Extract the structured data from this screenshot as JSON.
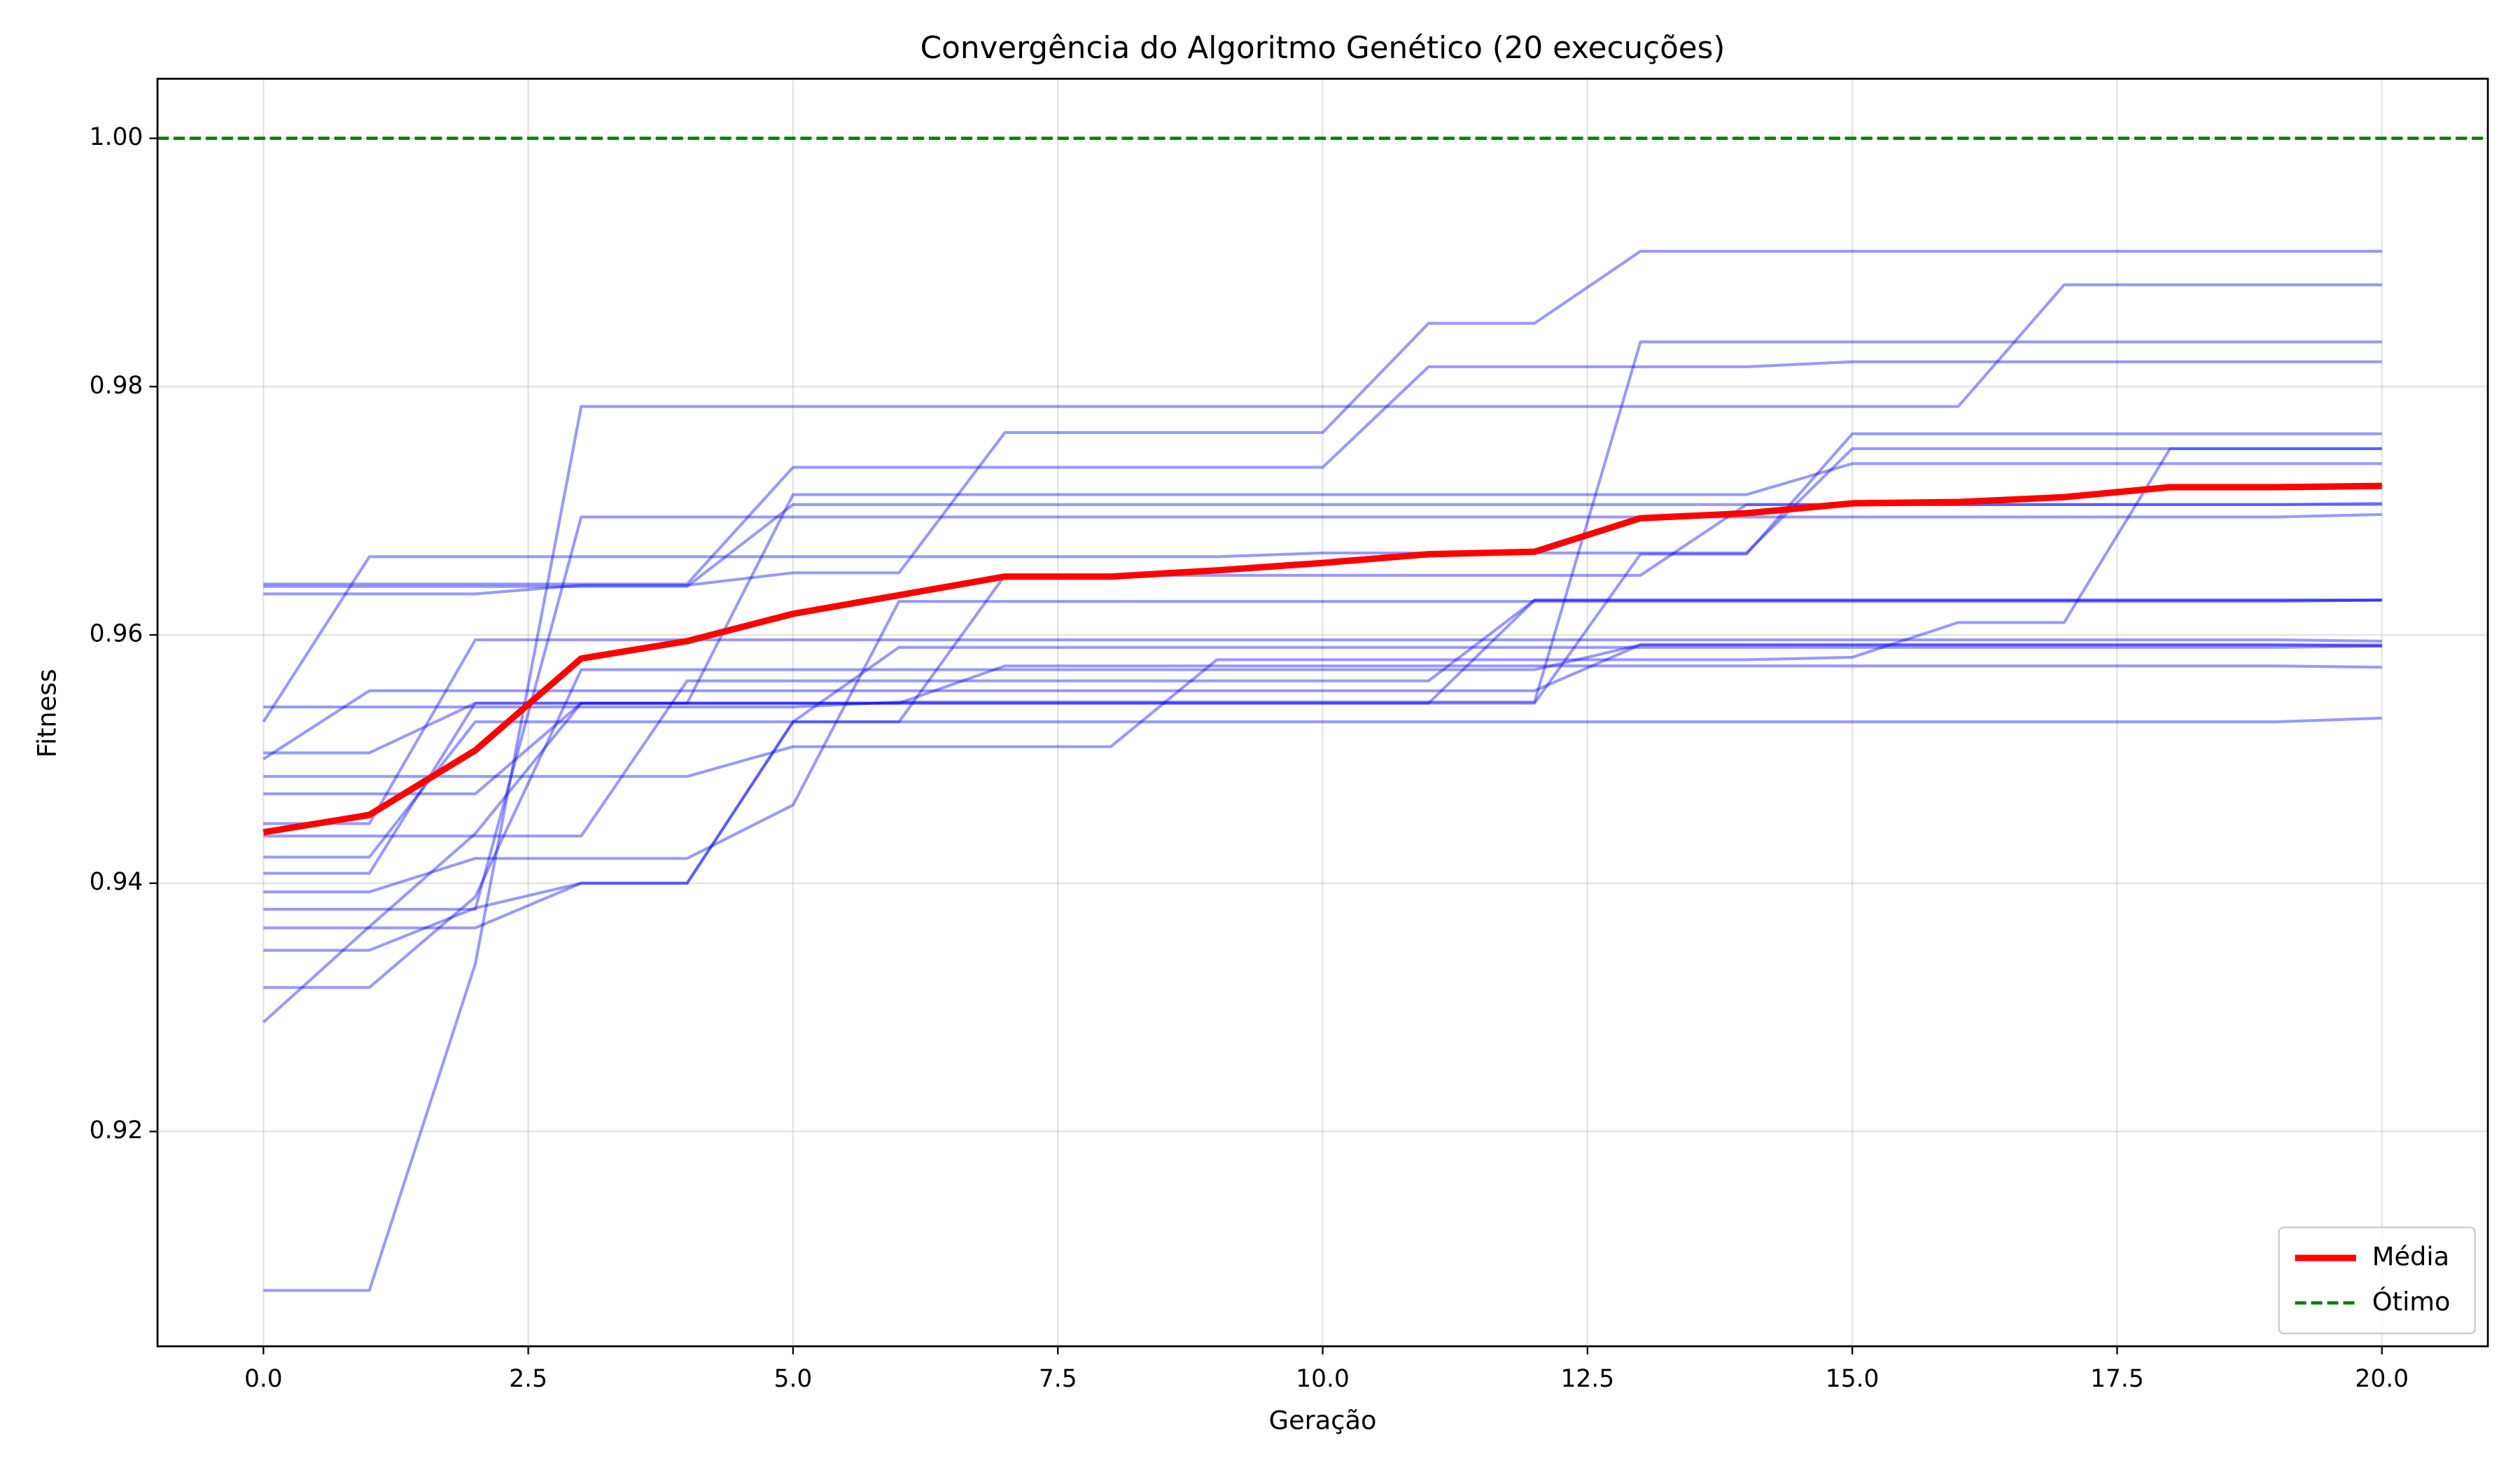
{
  "chart_data": {
    "type": "line",
    "title": "Convergência do Algoritmo Genético (20 execuções)",
    "xlabel": "Geração",
    "ylabel": "Fitness",
    "x": [
      0,
      1,
      2,
      3,
      4,
      5,
      6,
      7,
      8,
      9,
      10,
      11,
      12,
      13,
      14,
      15,
      16,
      17,
      18,
      19,
      20
    ],
    "xlim": [
      -1,
      21
    ],
    "ylim": [
      0.9027,
      1.0048
    ],
    "xticks": [
      {
        "value": 0,
        "label": "0.0"
      },
      {
        "value": 2.5,
        "label": "2.5"
      },
      {
        "value": 5,
        "label": "5.0"
      },
      {
        "value": 7.5,
        "label": "7.5"
      },
      {
        "value": 10,
        "label": "10.0"
      },
      {
        "value": 12.5,
        "label": "12.5"
      },
      {
        "value": 15,
        "label": "15.0"
      },
      {
        "value": 17.5,
        "label": "17.5"
      },
      {
        "value": 20,
        "label": "20.0"
      }
    ],
    "yticks": [
      0.92,
      0.94,
      0.96,
      0.98,
      {
        "value": 1,
        "label": "1.00"
      }
    ],
    "grid": true,
    "legend": "lower right",
    "series": [
      {
        "color": "#0000ff",
        "values": [
          0.9641,
          0.9641,
          0.9641,
          0.9641,
          0.9641,
          0.9735,
          0.9735,
          0.9735,
          0.9735,
          0.9735,
          0.9735,
          0.9816,
          0.9816,
          0.9816,
          0.9816,
          0.982,
          0.982,
          0.982,
          0.982,
          0.982,
          0.982
        ]
      },
      {
        "color": "#0000ff",
        "values": [
          0.9639,
          0.9639,
          0.9639,
          0.9639,
          0.9639,
          0.9705,
          0.9705,
          0.9705,
          0.9705,
          0.9705,
          0.9705,
          0.9705,
          0.9705,
          0.9705,
          0.9705,
          0.9705,
          0.9705,
          0.9705,
          0.9705,
          0.9705,
          0.9705
        ]
      },
      {
        "color": "#0000ff",
        "values": [
          0.9633,
          0.9633,
          0.9633,
          0.964,
          0.964,
          0.965,
          0.965,
          0.9763,
          0.9763,
          0.9763,
          0.9763,
          0.9851,
          0.9851,
          0.9909,
          0.9909,
          0.9909,
          0.9909,
          0.9909,
          0.9909,
          0.9909,
          0.9909
        ]
      },
      {
        "color": "#0000ff",
        "values": [
          0.9542,
          0.9542,
          0.9542,
          0.9542,
          0.9542,
          0.9542,
          0.9546,
          0.9546,
          0.9546,
          0.9546,
          0.9546,
          0.9546,
          0.9546,
          0.9836,
          0.9836,
          0.9836,
          0.9836,
          0.9836,
          0.9836,
          0.9836,
          0.9836
        ]
      },
      {
        "color": "#0000ff",
        "values": [
          0.953,
          0.9663,
          0.9663,
          0.9663,
          0.9663,
          0.9663,
          0.9663,
          0.9663,
          0.9663,
          0.9663,
          0.9666,
          0.9666,
          0.9666,
          0.9666,
          0.9666,
          0.975,
          0.975,
          0.975,
          0.975,
          0.975,
          0.975
        ]
      },
      {
        "color": "#0000ff",
        "values": [
          0.9505,
          0.9505,
          0.9545,
          0.9545,
          0.9545,
          0.9545,
          0.9545,
          0.9575,
          0.9575,
          0.9575,
          0.9575,
          0.9575,
          0.9575,
          0.9575,
          0.9575,
          0.9575,
          0.9575,
          0.9575,
          0.9575,
          0.9575,
          0.9574
        ]
      },
      {
        "color": "#0000ff",
        "values": [
          0.95,
          0.9555,
          0.9555,
          0.9555,
          0.9555,
          0.9555,
          0.9555,
          0.9555,
          0.9555,
          0.9555,
          0.9555,
          0.9555,
          0.9555,
          0.9592,
          0.9592,
          0.9592,
          0.9592,
          0.9592,
          0.9592,
          0.9592,
          0.9591
        ]
      },
      {
        "color": "#0000ff",
        "values": [
          0.9486,
          0.9486,
          0.9486,
          0.9486,
          0.9486,
          0.951,
          0.951,
          0.951,
          0.951,
          0.958,
          0.958,
          0.958,
          0.958,
          0.958,
          0.958,
          0.9582,
          0.961,
          0.961,
          0.975,
          0.975,
          0.975
        ]
      },
      {
        "color": "#0000ff",
        "values": [
          0.9472,
          0.9472,
          0.9472,
          0.9545,
          0.9545,
          0.9545,
          0.9545,
          0.9545,
          0.9545,
          0.9545,
          0.9545,
          0.9545,
          0.9545,
          0.9665,
          0.9665,
          0.9762,
          0.9762,
          0.9762,
          0.9762,
          0.9762,
          0.9762
        ]
      },
      {
        "color": "#0000ff",
        "values": [
          0.9448,
          0.9448,
          0.9596,
          0.9596,
          0.9596,
          0.9596,
          0.9596,
          0.9596,
          0.9596,
          0.9596,
          0.9596,
          0.9596,
          0.9596,
          0.9596,
          0.9596,
          0.9596,
          0.9596,
          0.9596,
          0.9596,
          0.9596,
          0.9595
        ]
      },
      {
        "color": "#0000ff",
        "values": [
          0.9438,
          0.9438,
          0.9438,
          0.9438,
          0.9563,
          0.9563,
          0.9563,
          0.9563,
          0.9563,
          0.9563,
          0.9563,
          0.9563,
          0.9628,
          0.9628,
          0.9628,
          0.9628,
          0.9628,
          0.9628,
          0.9628,
          0.9628,
          0.9628
        ]
      },
      {
        "color": "#0000ff",
        "values": [
          0.9421,
          0.9421,
          0.953,
          0.953,
          0.953,
          0.953,
          0.953,
          0.953,
          0.953,
          0.953,
          0.953,
          0.953,
          0.953,
          0.953,
          0.953,
          0.953,
          0.953,
          0.953,
          0.953,
          0.953,
          0.9533
        ]
      },
      {
        "color": "#0000ff",
        "values": [
          0.9408,
          0.9408,
          0.9545,
          0.9545,
          0.9545,
          0.9545,
          0.9545,
          0.9545,
          0.9545,
          0.9545,
          0.9545,
          0.9545,
          0.9628,
          0.9628,
          0.9628,
          0.9628,
          0.9628,
          0.9628,
          0.9628,
          0.9628,
          0.9628
        ]
      },
      {
        "color": "#0000ff",
        "values": [
          0.9393,
          0.9393,
          0.942,
          0.942,
          0.942,
          0.9463,
          0.9627,
          0.9627,
          0.9627,
          0.9627,
          0.9627,
          0.9627,
          0.9627,
          0.9627,
          0.9627,
          0.9627,
          0.9627,
          0.9627,
          0.9627,
          0.9627,
          0.9628
        ]
      },
      {
        "color": "#0000ff",
        "values": [
          0.9379,
          0.9379,
          0.9379,
          0.9695,
          0.9695,
          0.9695,
          0.9695,
          0.9695,
          0.9695,
          0.9695,
          0.9695,
          0.9695,
          0.9695,
          0.9695,
          0.9695,
          0.9695,
          0.9695,
          0.9695,
          0.9695,
          0.9695,
          0.9697
        ]
      },
      {
        "color": "#0000ff",
        "values": [
          0.9364,
          0.9364,
          0.9364,
          0.94,
          0.94,
          0.953,
          0.959,
          0.959,
          0.959,
          0.959,
          0.959,
          0.959,
          0.959,
          0.959,
          0.959,
          0.959,
          0.959,
          0.959,
          0.959,
          0.959,
          0.9591
        ]
      },
      {
        "color": "#0000ff",
        "values": [
          0.9346,
          0.9346,
          0.938,
          0.94,
          0.94,
          0.953,
          0.953,
          0.9648,
          0.9648,
          0.9648,
          0.9648,
          0.9648,
          0.9648,
          0.9648,
          0.9705,
          0.9705,
          0.9705,
          0.9705,
          0.9705,
          0.9705,
          0.9706
        ]
      },
      {
        "color": "#0000ff",
        "values": [
          0.9316,
          0.9316,
          0.9389,
          0.9572,
          0.9572,
          0.9572,
          0.9572,
          0.9572,
          0.9572,
          0.9572,
          0.9572,
          0.9572,
          0.9572,
          0.9592,
          0.9592,
          0.9592,
          0.9592,
          0.9592,
          0.9592,
          0.9592,
          0.9592
        ]
      },
      {
        "color": "#0000ff",
        "values": [
          0.9288,
          0.9365,
          0.944,
          0.9545,
          0.9545,
          0.9713,
          0.9713,
          0.9713,
          0.9713,
          0.9713,
          0.9713,
          0.9713,
          0.9713,
          0.9713,
          0.9713,
          0.9738,
          0.9738,
          0.9738,
          0.9738,
          0.9738,
          0.9738
        ]
      },
      {
        "color": "#0000ff",
        "values": [
          0.9072,
          0.9072,
          0.9335,
          0.9784,
          0.9784,
          0.9784,
          0.9784,
          0.9784,
          0.9784,
          0.9784,
          0.9784,
          0.9784,
          0.9784,
          0.9784,
          0.9784,
          0.9784,
          0.9784,
          0.9882,
          0.9882,
          0.9882,
          0.9882
        ]
      },
      {
        "name": "Média",
        "color": "#ff0000",
        "values": [
          0.9441,
          0.9455,
          0.9507,
          0.9581,
          0.9595,
          0.9617,
          0.9632,
          0.9647,
          0.9647,
          0.9652,
          0.9658,
          0.9665,
          0.9667,
          0.9694,
          0.9698,
          0.9706,
          0.9707,
          0.9711,
          0.9719,
          0.9719,
          0.972
        ]
      }
    ],
    "hlines": [
      {
        "name": "Ótimo",
        "y": 1,
        "color": "#008000"
      }
    ]
  }
}
